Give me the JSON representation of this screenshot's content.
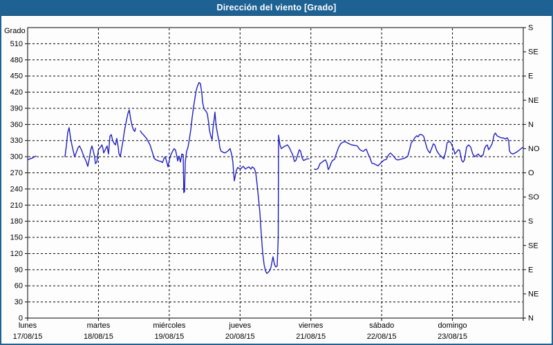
{
  "window": {
    "title": "Dirección del viento [Grado]",
    "title_bar_color": "#1e6294",
    "border_color": "#1e6294",
    "background_color": "#fdfdfd"
  },
  "chart_data": {
    "type": "line",
    "title": "Dirección del viento [Grado]",
    "ylabel_left": "Grado",
    "ylim": [
      0,
      540
    ],
    "y_left_tick_step": 30,
    "y_left_ticks": [
      0,
      30,
      60,
      90,
      120,
      150,
      180,
      210,
      240,
      270,
      300,
      330,
      360,
      390,
      420,
      450,
      480,
      510
    ],
    "y_right_labels": [
      {
        "deg": 0,
        "label": "N"
      },
      {
        "deg": 45,
        "label": "NE"
      },
      {
        "deg": 90,
        "label": "E"
      },
      {
        "deg": 135,
        "label": "SE"
      },
      {
        "deg": 180,
        "label": "S"
      },
      {
        "deg": 225,
        "label": "SO"
      },
      {
        "deg": 270,
        "label": "O"
      },
      {
        "deg": 315,
        "label": "NO"
      },
      {
        "deg": 360,
        "label": "N"
      },
      {
        "deg": 405,
        "label": "NE"
      },
      {
        "deg": 450,
        "label": "E"
      },
      {
        "deg": 495,
        "label": "SE"
      },
      {
        "deg": 540,
        "label": "S"
      }
    ],
    "xlim_days": [
      0,
      7
    ],
    "x_day_labels": [
      {
        "day": 0,
        "name": "lunes",
        "date": "17/08/15"
      },
      {
        "day": 1,
        "name": "martes",
        "date": "18/08/15"
      },
      {
        "day": 2,
        "name": "miércoles",
        "date": "19/08/15"
      },
      {
        "day": 3,
        "name": "jueves",
        "date": "20/08/15"
      },
      {
        "day": 4,
        "name": "viernes",
        "date": "21/08/15"
      },
      {
        "day": 5,
        "name": "sábado",
        "date": "22/08/15"
      },
      {
        "day": 6,
        "name": "domingo",
        "date": "23/08/15"
      }
    ],
    "grid": {
      "horizontal_step_deg": 30,
      "vertical_at_day_boundaries": true,
      "style": "dashed-black"
    },
    "line_color": "#1f1fc1",
    "series": [
      {
        "name": "Dirección del viento",
        "units": "Grado",
        "points": [
          [
            0.0,
            294
          ],
          [
            0.029,
            296
          ],
          [
            0.059,
            297
          ],
          [
            0.098,
            300
          ],
          [
            0.117,
            301
          ],
          null,
          [
            0.527,
            300
          ],
          [
            0.547,
            320
          ],
          [
            0.566,
            345
          ],
          [
            0.586,
            354
          ],
          [
            0.605,
            335
          ],
          [
            0.625,
            322
          ],
          [
            0.645,
            310
          ],
          [
            0.664,
            300
          ],
          [
            0.693,
            310
          ],
          [
            0.713,
            317
          ],
          [
            0.732,
            320
          ],
          [
            0.762,
            312
          ],
          [
            0.781,
            305
          ],
          [
            0.801,
            299
          ],
          [
            0.83,
            290
          ],
          [
            0.849,
            282
          ],
          [
            0.869,
            295
          ],
          [
            0.889,
            312
          ],
          [
            0.908,
            320
          ],
          [
            0.928,
            310
          ],
          [
            0.947,
            299
          ],
          [
            0.957,
            287
          ],
          [
            0.977,
            290
          ],
          [
            1.0,
            313
          ],
          [
            1.029,
            318
          ],
          [
            1.049,
            322
          ],
          [
            1.064,
            315
          ],
          [
            1.074,
            307
          ],
          [
            1.103,
            315
          ],
          [
            1.122,
            320
          ],
          [
            1.142,
            305
          ],
          [
            1.162,
            338
          ],
          [
            1.181,
            341
          ],
          [
            1.201,
            330
          ],
          [
            1.22,
            325
          ],
          [
            1.24,
            322
          ],
          [
            1.259,
            334
          ],
          [
            1.279,
            318
          ],
          [
            1.289,
            306
          ],
          [
            1.308,
            300
          ],
          [
            1.328,
            315
          ],
          [
            1.347,
            330
          ],
          [
            1.367,
            348
          ],
          [
            1.396,
            368
          ],
          [
            1.416,
            380
          ],
          [
            1.435,
            387
          ],
          [
            1.455,
            370
          ],
          [
            1.474,
            358
          ],
          [
            1.494,
            350
          ],
          [
            1.513,
            347
          ],
          [
            1.523,
            353
          ],
          null,
          [
            1.591,
            348
          ],
          [
            1.611,
            344
          ],
          [
            1.64,
            340
          ],
          [
            1.66,
            337
          ],
          [
            1.679,
            334
          ],
          [
            1.708,
            327
          ],
          [
            1.728,
            322
          ],
          [
            1.757,
            310
          ],
          [
            1.787,
            297
          ],
          [
            1.816,
            294
          ],
          [
            1.855,
            292
          ],
          [
            1.884,
            291
          ],
          [
            1.904,
            289
          ],
          [
            1.923,
            296
          ],
          [
            1.943,
            300
          ],
          [
            1.962,
            291
          ],
          [
            1.982,
            281
          ],
          [
            2.001,
            294
          ],
          [
            2.021,
            303
          ],
          [
            2.05,
            311
          ],
          [
            2.07,
            315
          ],
          [
            2.089,
            312
          ],
          [
            2.109,
            300
          ],
          [
            2.119,
            292
          ],
          [
            2.138,
            301
          ],
          [
            2.158,
            290
          ],
          [
            2.177,
            305
          ],
          [
            2.197,
            304
          ],
          [
            2.205,
            233
          ],
          [
            2.211,
            245
          ],
          [
            2.216,
            235
          ],
          [
            2.226,
            290
          ],
          [
            2.245,
            310
          ],
          [
            2.265,
            318
          ],
          [
            2.284,
            332
          ],
          [
            2.304,
            350
          ],
          [
            2.323,
            372
          ],
          [
            2.343,
            392
          ],
          [
            2.362,
            408
          ],
          [
            2.382,
            424
          ],
          [
            2.401,
            432
          ],
          [
            2.421,
            438
          ],
          [
            2.44,
            436
          ],
          [
            2.46,
            418
          ],
          [
            2.47,
            402
          ],
          [
            2.489,
            390
          ],
          [
            2.509,
            386
          ],
          [
            2.528,
            383
          ],
          [
            2.538,
            379
          ],
          [
            2.558,
            362
          ],
          [
            2.567,
            350
          ],
          [
            2.587,
            338
          ],
          [
            2.606,
            332
          ],
          [
            2.616,
            352
          ],
          [
            2.636,
            372
          ],
          [
            2.645,
            383
          ],
          [
            2.655,
            368
          ],
          [
            2.665,
            355
          ],
          [
            2.684,
            341
          ],
          [
            2.704,
            328
          ],
          [
            2.714,
            317
          ],
          [
            2.733,
            310
          ],
          [
            2.753,
            309
          ],
          [
            2.782,
            307
          ],
          [
            2.811,
            309
          ],
          [
            2.831,
            311
          ],
          [
            2.86,
            315
          ],
          [
            2.88,
            305
          ],
          [
            2.899,
            290
          ],
          [
            2.909,
            270
          ],
          [
            2.919,
            255
          ],
          [
            2.929,
            262
          ],
          [
            2.948,
            275
          ],
          [
            2.968,
            280
          ],
          [
            2.987,
            278
          ],
          [
            3.007,
            277
          ],
          [
            3.026,
            280
          ],
          [
            3.046,
            282
          ],
          [
            3.075,
            277
          ],
          [
            3.095,
            279
          ],
          [
            3.124,
            281
          ],
          [
            3.153,
            277
          ],
          [
            3.173,
            281
          ],
          [
            3.202,
            278
          ],
          [
            3.222,
            270
          ],
          [
            3.241,
            248
          ],
          [
            3.261,
            222
          ],
          [
            3.28,
            196
          ],
          [
            3.3,
            155
          ],
          [
            3.319,
            122
          ],
          [
            3.339,
            100
          ],
          [
            3.358,
            88
          ],
          [
            3.378,
            83
          ],
          [
            3.397,
            85
          ],
          [
            3.417,
            88
          ],
          [
            3.436,
            94
          ],
          [
            3.456,
            108
          ],
          [
            3.466,
            114
          ],
          [
            3.485,
            100
          ],
          [
            3.505,
            95
          ],
          [
            3.524,
            97
          ],
          [
            3.539,
            150
          ],
          [
            3.544,
            340
          ],
          [
            3.563,
            322
          ],
          [
            3.583,
            315
          ],
          [
            3.612,
            318
          ],
          [
            3.641,
            320
          ],
          [
            3.67,
            322
          ],
          [
            3.7,
            316
          ],
          [
            3.719,
            310
          ],
          [
            3.739,
            305
          ],
          [
            3.768,
            291
          ],
          [
            3.788,
            293
          ],
          [
            3.817,
            305
          ],
          [
            3.837,
            313
          ],
          [
            3.856,
            310
          ],
          [
            3.876,
            298
          ],
          [
            3.895,
            293
          ],
          [
            3.915,
            294
          ],
          [
            3.944,
            296
          ],
          [
            3.973,
            296
          ],
          null,
          [
            4.051,
            277
          ],
          [
            4.071,
            276
          ],
          [
            4.1,
            278
          ],
          [
            4.129,
            287
          ],
          [
            4.159,
            290
          ],
          [
            4.188,
            293
          ],
          [
            4.207,
            294
          ],
          [
            4.227,
            288
          ],
          [
            4.246,
            276
          ],
          [
            4.266,
            281
          ],
          [
            4.285,
            288
          ],
          [
            4.305,
            293
          ],
          [
            4.334,
            295
          ],
          [
            4.363,
            307
          ],
          [
            4.393,
            318
          ],
          [
            4.422,
            324
          ],
          [
            4.451,
            327
          ],
          [
            4.481,
            328
          ],
          [
            4.51,
            326
          ],
          [
            4.539,
            324
          ],
          [
            4.578,
            322
          ],
          [
            4.617,
            321
          ],
          [
            4.656,
            320
          ],
          [
            4.686,
            314
          ],
          [
            4.715,
            311
          ],
          [
            4.744,
            310
          ],
          [
            4.764,
            313
          ],
          [
            4.783,
            314
          ],
          [
            4.812,
            304
          ],
          [
            4.832,
            299
          ],
          [
            4.861,
            288
          ],
          [
            4.891,
            287
          ],
          [
            4.92,
            285
          ],
          [
            4.949,
            283
          ],
          [
            4.978,
            287
          ],
          [
            5.008,
            291
          ],
          [
            5.037,
            294
          ],
          [
            5.066,
            295
          ],
          [
            5.095,
            303
          ],
          [
            5.125,
            307
          ],
          [
            5.154,
            303
          ],
          [
            5.173,
            300
          ],
          [
            5.203,
            295
          ],
          [
            5.232,
            294
          ],
          [
            5.261,
            295
          ],
          [
            5.291,
            296
          ],
          [
            5.32,
            297
          ],
          [
            5.349,
            299
          ],
          [
            5.369,
            301
          ],
          [
            5.398,
            315
          ],
          [
            5.418,
            326
          ],
          [
            5.447,
            330
          ],
          [
            5.466,
            335
          ],
          [
            5.496,
            339
          ],
          [
            5.515,
            337
          ],
          [
            5.535,
            341
          ],
          [
            5.564,
            341
          ],
          [
            5.593,
            338
          ],
          [
            5.622,
            324
          ],
          [
            5.642,
            315
          ],
          [
            5.662,
            310
          ],
          [
            5.681,
            307
          ],
          [
            5.71,
            317
          ],
          [
            5.73,
            324
          ],
          [
            5.749,
            322
          ],
          [
            5.779,
            311
          ],
          [
            5.808,
            305
          ],
          [
            5.837,
            301
          ],
          [
            5.857,
            299
          ],
          [
            5.876,
            296
          ],
          [
            5.906,
            310
          ],
          [
            5.925,
            326
          ],
          [
            5.954,
            328
          ],
          [
            5.974,
            327
          ],
          [
            6.003,
            318
          ],
          [
            6.023,
            311
          ],
          [
            6.033,
            305
          ],
          [
            6.052,
            308
          ],
          [
            6.082,
            313
          ],
          [
            6.101,
            312
          ],
          [
            6.13,
            293
          ],
          [
            6.15,
            290
          ],
          [
            6.169,
            294
          ],
          [
            6.199,
            318
          ],
          [
            6.228,
            322
          ],
          [
            6.257,
            318
          ],
          [
            6.286,
            305
          ],
          [
            6.316,
            300
          ],
          [
            6.345,
            303
          ],
          [
            6.364,
            305
          ],
          [
            6.394,
            300
          ],
          [
            6.413,
            302
          ],
          [
            6.433,
            303
          ],
          [
            6.452,
            315
          ],
          [
            6.472,
            320
          ],
          [
            6.491,
            322
          ],
          [
            6.511,
            313
          ],
          [
            6.53,
            317
          ],
          [
            6.56,
            324
          ],
          [
            6.589,
            341
          ],
          [
            6.608,
            344
          ],
          [
            6.628,
            339
          ],
          [
            6.657,
            337
          ],
          [
            6.687,
            335
          ],
          [
            6.716,
            335
          ],
          [
            6.745,
            333
          ],
          [
            6.774,
            335
          ],
          [
            6.794,
            330
          ],
          [
            6.804,
            311
          ],
          [
            6.823,
            307
          ],
          [
            6.853,
            305
          ],
          [
            6.882,
            307
          ],
          [
            6.911,
            309
          ],
          [
            6.95,
            313
          ],
          [
            6.979,
            316
          ],
          [
            7.0,
            318
          ]
        ]
      }
    ]
  }
}
